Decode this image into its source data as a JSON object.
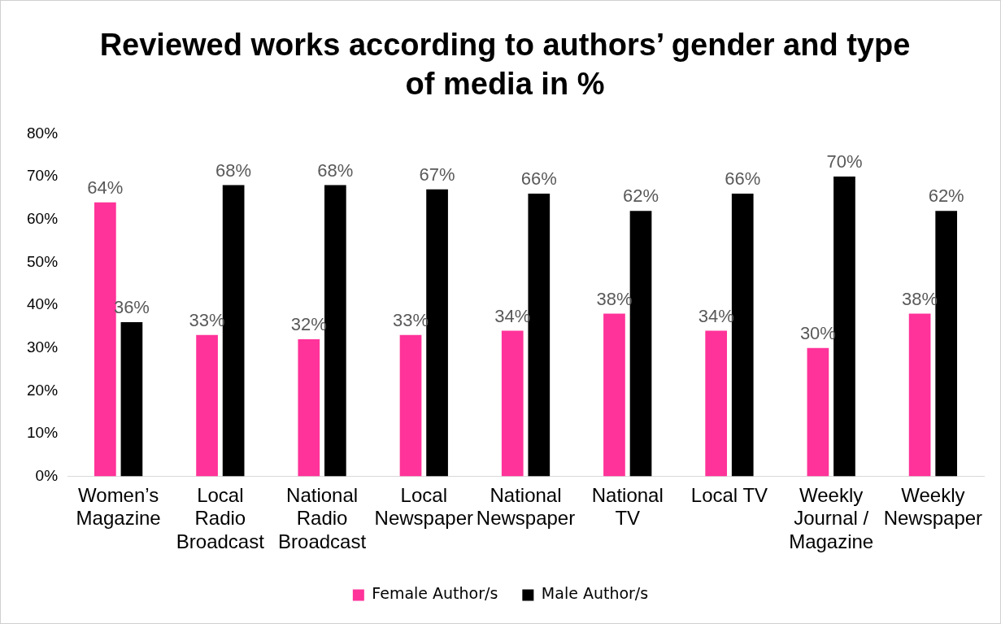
{
  "chart_data": {
    "type": "bar",
    "title": "Reviewed works according to authors’ gender and type of media in %",
    "categories": [
      "Women’s Magazine",
      "Local Radio Broadcast",
      "National Radio Broadcast",
      "Local Newspaper",
      "National Newspaper",
      "National TV",
      "Local TV",
      "Weekly Journal / Magazine",
      "Weekly Newspaper"
    ],
    "series": [
      {
        "name": "Female Author/s",
        "color": "#ff3399",
        "values": [
          64,
          33,
          32,
          33,
          34,
          38,
          34,
          30,
          38
        ],
        "value_labels": [
          "64%",
          "33%",
          "32%",
          "33%",
          "34%",
          "38%",
          "34%",
          "30%",
          "38%"
        ]
      },
      {
        "name": "Male Author/s",
        "color": "#000000",
        "values": [
          36,
          68,
          68,
          67,
          66,
          62,
          66,
          70,
          62
        ],
        "value_labels": [
          "36%",
          "68%",
          "68%",
          "67%",
          "66%",
          "62%",
          "66%",
          "70%",
          "62%"
        ]
      }
    ],
    "ylim": [
      0,
      80
    ],
    "yticks": [
      {
        "value": 0,
        "label": "0%"
      },
      {
        "value": 10,
        "label": "10%"
      },
      {
        "value": 20,
        "label": "20%"
      },
      {
        "value": 30,
        "label": "30%"
      },
      {
        "value": 40,
        "label": "40%"
      },
      {
        "value": 50,
        "label": "50%"
      },
      {
        "value": 60,
        "label": "60%"
      },
      {
        "value": 70,
        "label": "70%"
      },
      {
        "value": 80,
        "label": "80%"
      }
    ],
    "grid": false,
    "legend": "bottom"
  }
}
